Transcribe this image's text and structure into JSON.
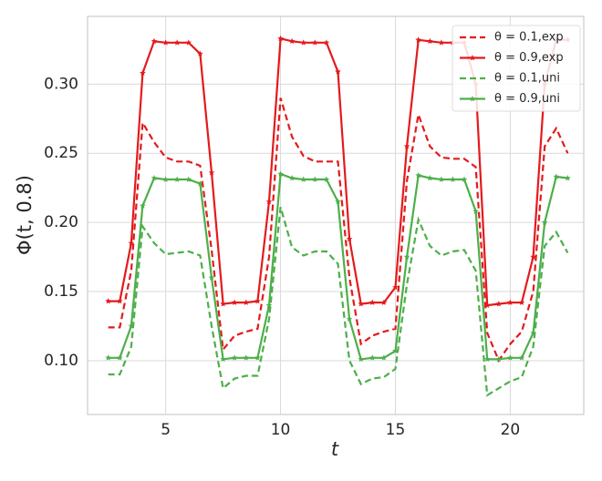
{
  "chart_data": {
    "type": "line",
    "ylabel": "Φ(t, 0.8)",
    "xlabel": "t",
    "x": [
      2.5,
      3,
      3.5,
      4,
      4.5,
      5,
      5.5,
      6,
      6.5,
      7,
      7.5,
      8,
      8.5,
      9,
      9.5,
      10,
      10.5,
      11,
      11.5,
      12,
      12.5,
      13,
      13.5,
      14,
      14.5,
      15,
      15.5,
      16,
      16.5,
      17,
      17.5,
      18,
      18.5,
      19,
      19.5,
      20,
      20.5,
      21,
      21.5,
      22,
      22.5
    ],
    "series": [
      {
        "name": "θ = 0.1,exp",
        "color": "#e41a1c",
        "linestyle": "dashed",
        "marker": false,
        "values": [
          0.124,
          0.124,
          0.165,
          0.272,
          0.258,
          0.247,
          0.244,
          0.244,
          0.241,
          0.18,
          0.108,
          0.118,
          0.121,
          0.123,
          0.175,
          0.29,
          0.262,
          0.248,
          0.244,
          0.244,
          0.244,
          0.16,
          0.112,
          0.118,
          0.121,
          0.123,
          0.23,
          0.278,
          0.255,
          0.247,
          0.246,
          0.246,
          0.24,
          0.12,
          0.1,
          0.112,
          0.121,
          0.15,
          0.255,
          0.268,
          0.25
        ]
      },
      {
        "name": "θ = 0.9,exp",
        "color": "#e41a1c",
        "linestyle": "solid",
        "marker": true,
        "values": [
          0.143,
          0.143,
          0.185,
          0.308,
          0.331,
          0.33,
          0.33,
          0.33,
          0.322,
          0.236,
          0.141,
          0.142,
          0.142,
          0.143,
          0.215,
          0.333,
          0.331,
          0.33,
          0.33,
          0.33,
          0.309,
          0.188,
          0.141,
          0.142,
          0.142,
          0.153,
          0.255,
          0.332,
          0.331,
          0.33,
          0.33,
          0.33,
          0.3,
          0.14,
          0.141,
          0.142,
          0.142,
          0.175,
          0.3,
          0.332,
          0.332
        ]
      },
      {
        "name": "θ = 0.1,uni",
        "color": "#4daf4a",
        "linestyle": "dashed",
        "marker": false,
        "values": [
          0.09,
          0.09,
          0.11,
          0.197,
          0.185,
          0.177,
          0.178,
          0.179,
          0.176,
          0.125,
          0.08,
          0.087,
          0.089,
          0.089,
          0.13,
          0.211,
          0.182,
          0.176,
          0.179,
          0.179,
          0.17,
          0.1,
          0.083,
          0.087,
          0.088,
          0.094,
          0.155,
          0.202,
          0.183,
          0.176,
          0.179,
          0.18,
          0.165,
          0.075,
          0.08,
          0.085,
          0.088,
          0.11,
          0.183,
          0.193,
          0.178
        ]
      },
      {
        "name": "θ = 0.9,uni",
        "color": "#4daf4a",
        "linestyle": "solid",
        "marker": true,
        "values": [
          0.102,
          0.102,
          0.125,
          0.212,
          0.232,
          0.231,
          0.231,
          0.231,
          0.228,
          0.16,
          0.101,
          0.102,
          0.102,
          0.102,
          0.14,
          0.235,
          0.232,
          0.231,
          0.231,
          0.231,
          0.215,
          0.13,
          0.101,
          0.102,
          0.102,
          0.107,
          0.175,
          0.234,
          0.232,
          0.231,
          0.231,
          0.231,
          0.208,
          0.101,
          0.101,
          0.102,
          0.102,
          0.12,
          0.2,
          0.233,
          0.232
        ]
      }
    ],
    "xlim": [
      1.6,
      23.2
    ],
    "xticks": [
      5,
      10,
      15,
      20
    ],
    "ylim": [
      0.061,
      0.349
    ],
    "yticks": [
      {
        "value": 0.1,
        "label": "0.10"
      },
      0.15,
      {
        "value": 0.2,
        "label": "0.20"
      },
      0.25,
      {
        "value": 0.3,
        "label": "0.30"
      }
    ],
    "grid": true,
    "legend": "upper right"
  }
}
